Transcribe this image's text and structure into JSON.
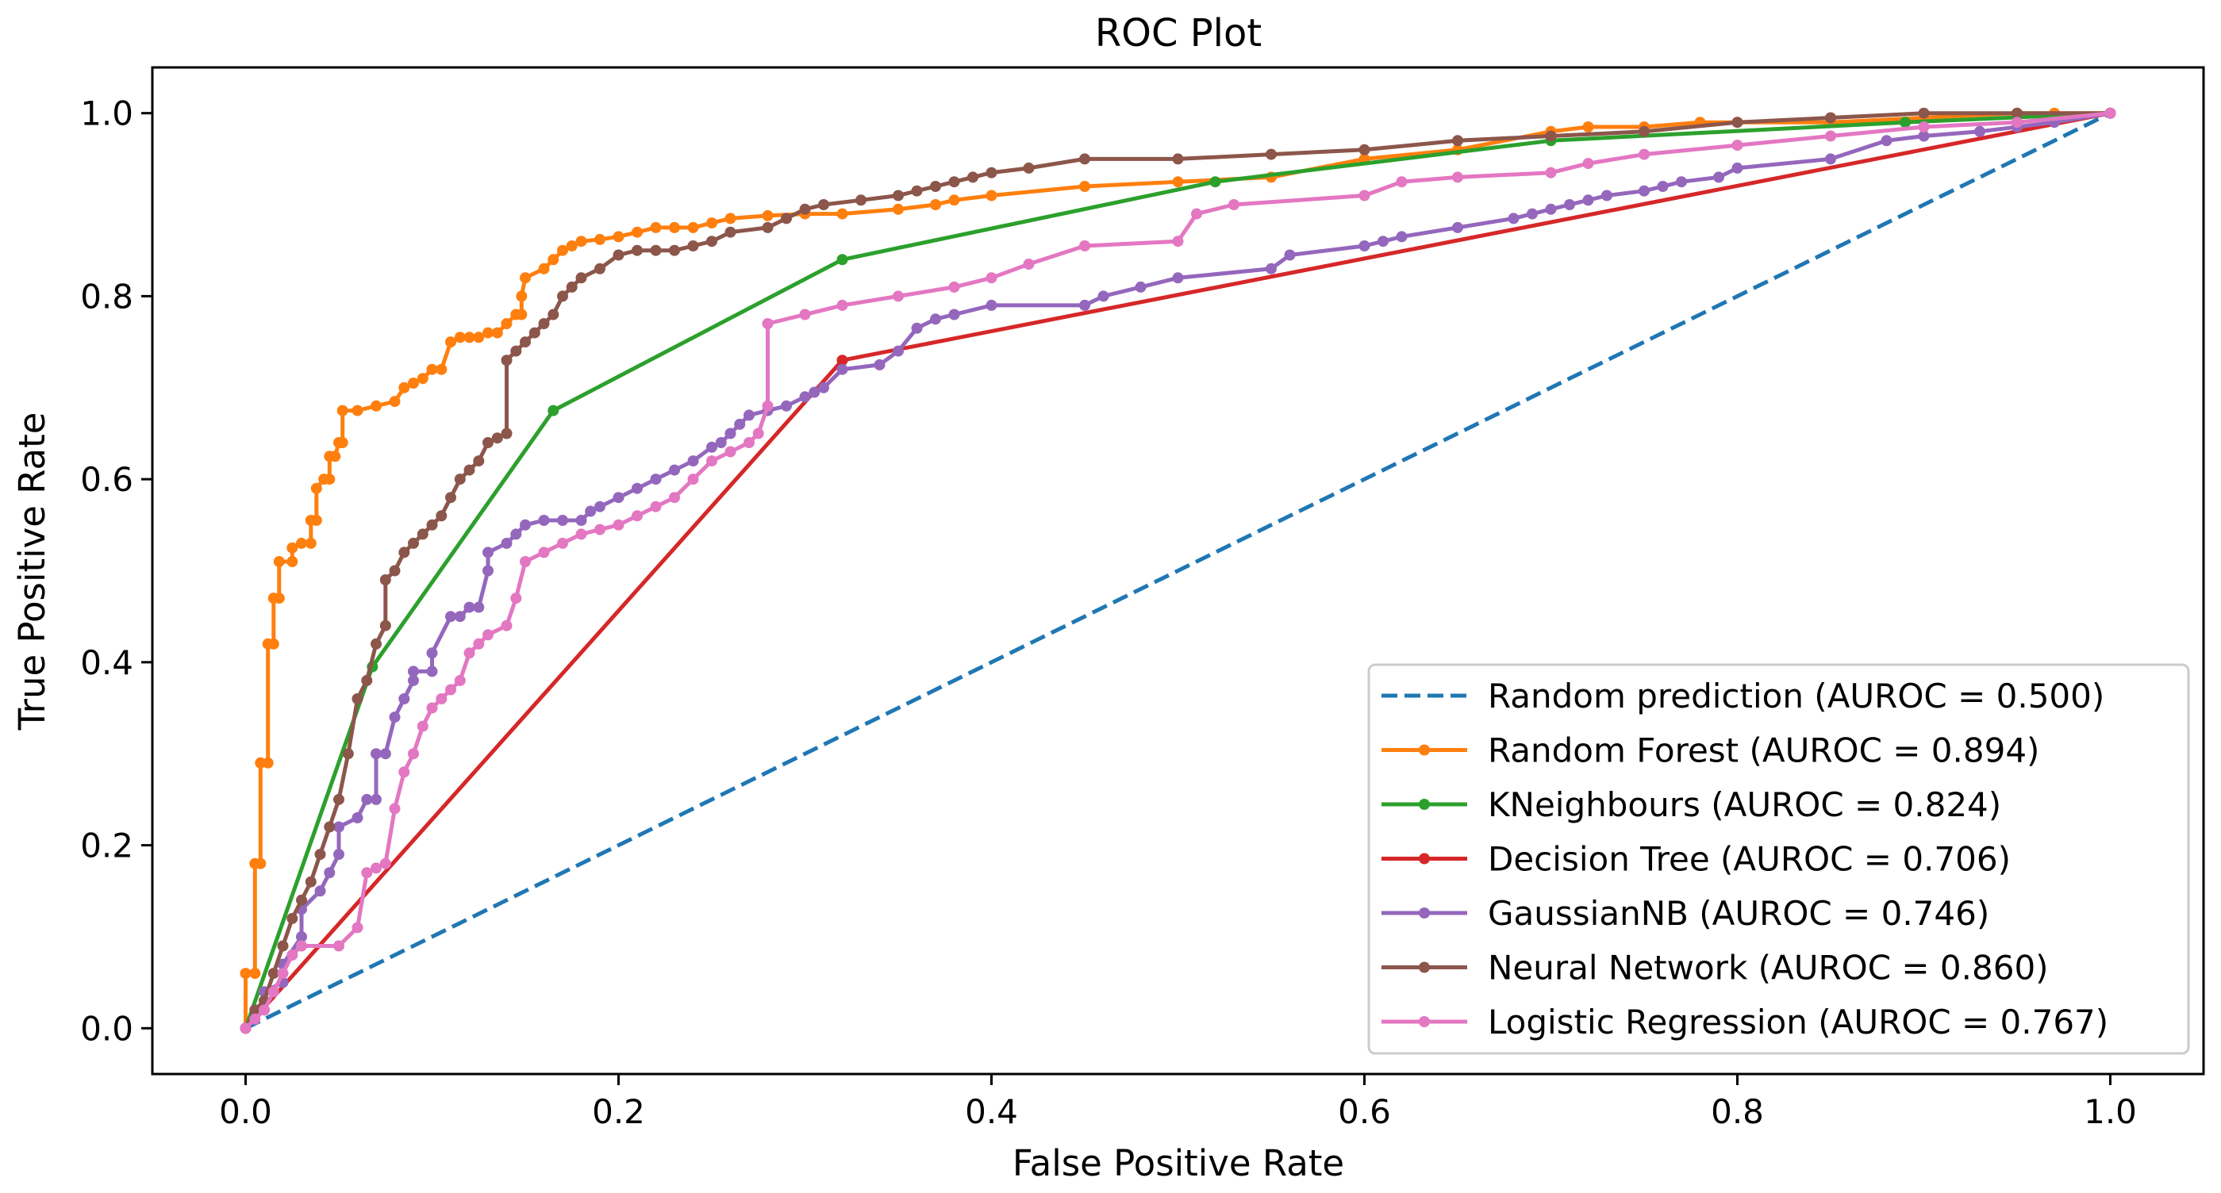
{
  "chart_data": {
    "type": "line",
    "title": "ROC Plot",
    "xlabel": "False Positive Rate",
    "ylabel": "True Positive Rate",
    "xlim": [
      -0.05,
      1.05
    ],
    "ylim": [
      -0.05,
      1.05
    ],
    "xticks": [
      0.0,
      0.2,
      0.4,
      0.6,
      0.8,
      1.0
    ],
    "yticks": [
      0.0,
      0.2,
      0.4,
      0.6,
      0.8,
      1.0
    ],
    "xtick_labels": [
      "0.0",
      "0.2",
      "0.4",
      "0.6",
      "0.8",
      "1.0"
    ],
    "ytick_labels": [
      "0.0",
      "0.2",
      "0.4",
      "0.6",
      "0.8",
      "1.0"
    ],
    "grid": false,
    "legend_position": "lower-right",
    "series": [
      {
        "name": "Random prediction (AUROC = 0.500)",
        "color": "#1f77b4",
        "style": "dashed",
        "markers": false,
        "x": [
          0.0,
          1.0
        ],
        "y": [
          0.0,
          1.0
        ]
      },
      {
        "name": "Random Forest (AUROC = 0.894)",
        "color": "#ff7f0e",
        "style": "solid",
        "markers": true,
        "x": [
          0.0,
          0.0,
          0.005,
          0.005,
          0.008,
          0.008,
          0.012,
          0.012,
          0.015,
          0.015,
          0.018,
          0.018,
          0.025,
          0.025,
          0.03,
          0.035,
          0.035,
          0.038,
          0.038,
          0.042,
          0.045,
          0.045,
          0.048,
          0.05,
          0.052,
          0.052,
          0.06,
          0.07,
          0.08,
          0.085,
          0.09,
          0.095,
          0.1,
          0.105,
          0.11,
          0.115,
          0.12,
          0.125,
          0.13,
          0.135,
          0.14,
          0.145,
          0.148,
          0.148,
          0.15,
          0.16,
          0.165,
          0.17,
          0.175,
          0.18,
          0.19,
          0.2,
          0.21,
          0.22,
          0.23,
          0.24,
          0.25,
          0.26,
          0.28,
          0.3,
          0.32,
          0.35,
          0.37,
          0.38,
          0.4,
          0.45,
          0.5,
          0.55,
          0.6,
          0.65,
          0.7,
          0.72,
          0.75,
          0.78,
          0.8,
          0.85,
          0.9,
          0.95,
          0.97,
          1.0
        ],
        "y": [
          0.0,
          0.06,
          0.06,
          0.18,
          0.18,
          0.29,
          0.29,
          0.42,
          0.42,
          0.47,
          0.47,
          0.51,
          0.51,
          0.525,
          0.53,
          0.53,
          0.555,
          0.555,
          0.59,
          0.6,
          0.6,
          0.625,
          0.625,
          0.64,
          0.64,
          0.675,
          0.675,
          0.68,
          0.685,
          0.7,
          0.705,
          0.71,
          0.72,
          0.72,
          0.75,
          0.755,
          0.755,
          0.755,
          0.76,
          0.76,
          0.77,
          0.78,
          0.78,
          0.8,
          0.82,
          0.83,
          0.84,
          0.85,
          0.855,
          0.86,
          0.862,
          0.865,
          0.87,
          0.875,
          0.875,
          0.875,
          0.88,
          0.885,
          0.888,
          0.89,
          0.89,
          0.895,
          0.9,
          0.905,
          0.91,
          0.92,
          0.925,
          0.93,
          0.95,
          0.96,
          0.98,
          0.985,
          0.985,
          0.99,
          0.99,
          0.99,
          0.995,
          1.0,
          1.0,
          1.0
        ]
      },
      {
        "name": "KNeighbours (AUROC = 0.824)",
        "color": "#2ca02c",
        "style": "solid",
        "markers": true,
        "x": [
          0.0,
          0.068,
          0.165,
          0.32,
          0.52,
          0.7,
          0.89,
          1.0
        ],
        "y": [
          0.0,
          0.395,
          0.675,
          0.84,
          0.925,
          0.97,
          0.99,
          1.0
        ]
      },
      {
        "name": "Decision Tree (AUROC = 0.706)",
        "color": "#d62728",
        "style": "solid",
        "markers": true,
        "x": [
          0.0,
          0.32,
          1.0
        ],
        "y": [
          0.0,
          0.73,
          1.0
        ]
      },
      {
        "name": "GaussianNB (AUROC = 0.746)",
        "color": "#9467bd",
        "style": "solid",
        "markers": true,
        "x": [
          0.0,
          0.01,
          0.01,
          0.02,
          0.02,
          0.03,
          0.03,
          0.04,
          0.045,
          0.05,
          0.05,
          0.06,
          0.065,
          0.07,
          0.07,
          0.075,
          0.08,
          0.085,
          0.09,
          0.09,
          0.1,
          0.1,
          0.11,
          0.115,
          0.12,
          0.125,
          0.13,
          0.13,
          0.14,
          0.145,
          0.15,
          0.16,
          0.17,
          0.18,
          0.185,
          0.19,
          0.2,
          0.21,
          0.22,
          0.23,
          0.24,
          0.25,
          0.255,
          0.26,
          0.265,
          0.27,
          0.28,
          0.29,
          0.3,
          0.305,
          0.31,
          0.32,
          0.34,
          0.35,
          0.36,
          0.37,
          0.38,
          0.4,
          0.45,
          0.46,
          0.48,
          0.5,
          0.55,
          0.56,
          0.6,
          0.61,
          0.62,
          0.65,
          0.68,
          0.69,
          0.7,
          0.71,
          0.72,
          0.73,
          0.75,
          0.76,
          0.77,
          0.79,
          0.8,
          0.85,
          0.88,
          0.9,
          0.93,
          0.95,
          0.97,
          1.0
        ],
        "y": [
          0.0,
          0.02,
          0.04,
          0.05,
          0.07,
          0.1,
          0.13,
          0.15,
          0.17,
          0.19,
          0.22,
          0.23,
          0.25,
          0.25,
          0.3,
          0.3,
          0.34,
          0.36,
          0.38,
          0.39,
          0.39,
          0.41,
          0.45,
          0.45,
          0.46,
          0.46,
          0.5,
          0.52,
          0.53,
          0.54,
          0.55,
          0.555,
          0.555,
          0.555,
          0.565,
          0.57,
          0.58,
          0.59,
          0.6,
          0.61,
          0.62,
          0.635,
          0.64,
          0.65,
          0.66,
          0.67,
          0.675,
          0.68,
          0.69,
          0.695,
          0.7,
          0.72,
          0.725,
          0.74,
          0.765,
          0.775,
          0.78,
          0.79,
          0.79,
          0.8,
          0.81,
          0.82,
          0.83,
          0.845,
          0.855,
          0.86,
          0.865,
          0.875,
          0.885,
          0.89,
          0.895,
          0.9,
          0.905,
          0.91,
          0.915,
          0.92,
          0.925,
          0.93,
          0.94,
          0.95,
          0.97,
          0.975,
          0.98,
          0.985,
          0.99,
          1.0
        ]
      },
      {
        "name": "Neural Network (AUROC = 0.860)",
        "color": "#8c564b",
        "style": "solid",
        "markers": true,
        "x": [
          0.0,
          0.005,
          0.01,
          0.015,
          0.02,
          0.025,
          0.03,
          0.035,
          0.04,
          0.045,
          0.05,
          0.055,
          0.06,
          0.065,
          0.07,
          0.075,
          0.075,
          0.08,
          0.085,
          0.09,
          0.095,
          0.1,
          0.105,
          0.11,
          0.115,
          0.12,
          0.125,
          0.13,
          0.135,
          0.14,
          0.14,
          0.145,
          0.15,
          0.155,
          0.16,
          0.165,
          0.17,
          0.175,
          0.18,
          0.19,
          0.2,
          0.21,
          0.22,
          0.23,
          0.24,
          0.25,
          0.26,
          0.28,
          0.29,
          0.3,
          0.31,
          0.33,
          0.35,
          0.36,
          0.37,
          0.38,
          0.39,
          0.4,
          0.42,
          0.45,
          0.5,
          0.55,
          0.6,
          0.65,
          0.7,
          0.75,
          0.8,
          0.85,
          0.9,
          0.95,
          1.0
        ],
        "y": [
          0.0,
          0.02,
          0.03,
          0.06,
          0.09,
          0.12,
          0.14,
          0.16,
          0.19,
          0.22,
          0.25,
          0.3,
          0.36,
          0.38,
          0.42,
          0.44,
          0.49,
          0.5,
          0.52,
          0.53,
          0.54,
          0.55,
          0.56,
          0.58,
          0.6,
          0.61,
          0.62,
          0.64,
          0.645,
          0.65,
          0.73,
          0.74,
          0.75,
          0.76,
          0.77,
          0.78,
          0.8,
          0.81,
          0.82,
          0.83,
          0.845,
          0.85,
          0.85,
          0.85,
          0.855,
          0.86,
          0.87,
          0.875,
          0.885,
          0.895,
          0.9,
          0.905,
          0.91,
          0.915,
          0.92,
          0.925,
          0.93,
          0.935,
          0.94,
          0.95,
          0.95,
          0.955,
          0.96,
          0.97,
          0.975,
          0.98,
          0.99,
          0.995,
          1.0,
          1.0,
          1.0
        ]
      },
      {
        "name": "Logistic Regression (AUROC = 0.767)",
        "color": "#e377c2",
        "style": "solid",
        "markers": true,
        "x": [
          0.0,
          0.005,
          0.01,
          0.015,
          0.02,
          0.025,
          0.03,
          0.05,
          0.06,
          0.065,
          0.07,
          0.075,
          0.08,
          0.085,
          0.09,
          0.095,
          0.1,
          0.105,
          0.11,
          0.115,
          0.12,
          0.125,
          0.13,
          0.14,
          0.145,
          0.15,
          0.16,
          0.17,
          0.18,
          0.19,
          0.2,
          0.21,
          0.22,
          0.23,
          0.24,
          0.25,
          0.26,
          0.27,
          0.275,
          0.28,
          0.28,
          0.3,
          0.32,
          0.35,
          0.38,
          0.4,
          0.42,
          0.45,
          0.5,
          0.51,
          0.53,
          0.6,
          0.62,
          0.65,
          0.7,
          0.72,
          0.75,
          0.8,
          0.85,
          0.9,
          0.95,
          1.0
        ],
        "y": [
          0.0,
          0.01,
          0.02,
          0.04,
          0.06,
          0.08,
          0.09,
          0.09,
          0.11,
          0.17,
          0.175,
          0.18,
          0.24,
          0.28,
          0.3,
          0.33,
          0.35,
          0.36,
          0.37,
          0.38,
          0.41,
          0.42,
          0.43,
          0.44,
          0.47,
          0.51,
          0.52,
          0.53,
          0.54,
          0.545,
          0.55,
          0.56,
          0.57,
          0.58,
          0.6,
          0.62,
          0.63,
          0.64,
          0.65,
          0.68,
          0.77,
          0.78,
          0.79,
          0.8,
          0.81,
          0.82,
          0.835,
          0.855,
          0.86,
          0.89,
          0.9,
          0.91,
          0.925,
          0.93,
          0.935,
          0.945,
          0.955,
          0.965,
          0.975,
          0.985,
          0.99,
          1.0
        ]
      }
    ]
  }
}
